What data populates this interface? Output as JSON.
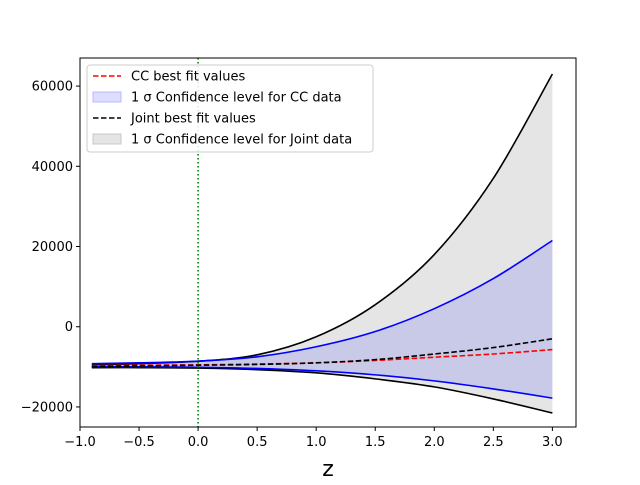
{
  "chart_data": {
    "type": "line",
    "title": "",
    "xlabel": "z",
    "ylabel": "",
    "xlim": [
      -1.0,
      3.2
    ],
    "ylim": [
      -25000,
      67000
    ],
    "xticks": [
      -1.0,
      -0.5,
      0.0,
      0.5,
      1.0,
      1.5,
      2.0,
      2.5,
      3.0
    ],
    "xtick_labels": [
      "−1.0",
      "−0.5",
      "0.0",
      "0.5",
      "1.0",
      "1.5",
      "2.0",
      "2.5",
      "3.0"
    ],
    "yticks": [
      -20000,
      0,
      20000,
      40000,
      60000
    ],
    "ytick_labels": [
      "−20000",
      "0",
      "20000",
      "40000",
      "60000"
    ],
    "vline": {
      "x": 0.0,
      "color": "#008000",
      "style": "dotted"
    },
    "x": [
      -0.9,
      -0.5,
      0.0,
      0.5,
      1.0,
      1.5,
      2.0,
      2.5,
      3.0
    ],
    "series": [
      {
        "name": "CC best fit values",
        "kind": "line",
        "color": "#ff0000",
        "style": "dashed",
        "values": [
          -9700,
          -9600,
          -9500,
          -9300,
          -9000,
          -8400,
          -7600,
          -6800,
          -5700
        ]
      },
      {
        "name": "Joint best fit values",
        "kind": "line",
        "color": "#000000",
        "style": "dashed",
        "values": [
          -9900,
          -9800,
          -9600,
          -9400,
          -9000,
          -8200,
          -6800,
          -5200,
          -3000
        ]
      }
    ],
    "bands": [
      {
        "name": "1 σ Confidence level for Joint data",
        "fill": "#e5e5e5",
        "edge": "#000000",
        "upper": [
          -9500,
          -9200,
          -8600,
          -7000,
          -2500,
          5500,
          18000,
          37000,
          63000
        ],
        "lower": [
          -10200,
          -10200,
          -10300,
          -10700,
          -11500,
          -13000,
          -15000,
          -18000,
          -21500
        ]
      },
      {
        "name": "1 σ Confidence level for CC data",
        "fill": "#0000ff",
        "edge": "#0000ff",
        "upper": [
          -9200,
          -9000,
          -8600,
          -7500,
          -5000,
          -1200,
          4500,
          12000,
          21500
        ],
        "lower": [
          -10000,
          -10000,
          -10100,
          -10400,
          -11000,
          -12000,
          -13500,
          -15500,
          -17800
        ]
      }
    ],
    "legend": {
      "position": "top-left",
      "entries": [
        {
          "label": "CC best fit values",
          "kind": "dashed-line",
          "color": "#ff0000"
        },
        {
          "label": "1 σ Confidence level for CC data",
          "kind": "patch",
          "color": "#ddddff",
          "edge": "#b8b8ff"
        },
        {
          "label": "Joint best fit values",
          "kind": "dashed-line",
          "color": "#000000"
        },
        {
          "label": "1 σ Confidence level for Joint data",
          "kind": "patch",
          "color": "#e5e5e5",
          "edge": "#c8c8c8"
        }
      ]
    }
  }
}
